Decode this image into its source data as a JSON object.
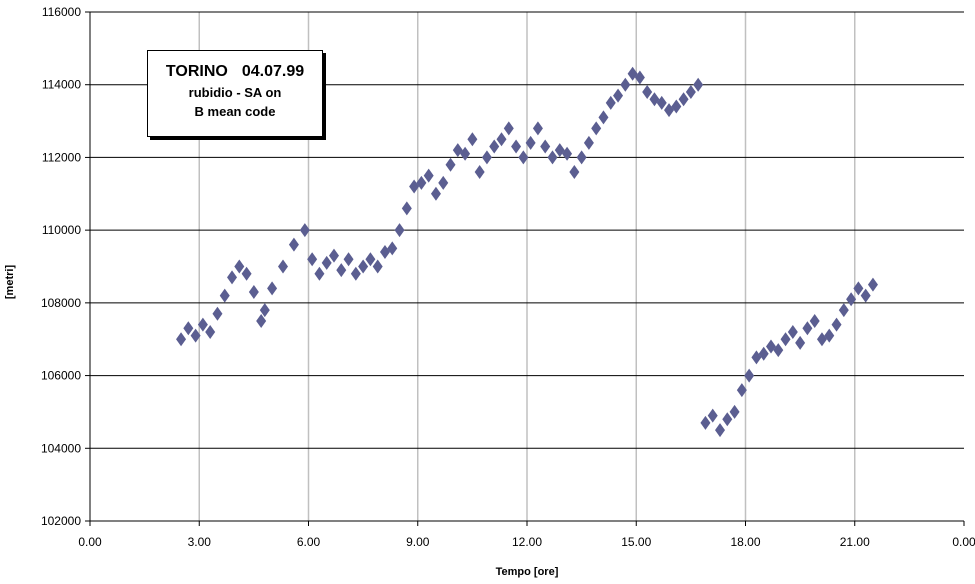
{
  "chart_data": {
    "type": "scatter",
    "title": "",
    "xlabel": "Tempo [ore]",
    "ylabel": "[metri]",
    "xlim": [
      0,
      24
    ],
    "ylim": [
      102000,
      116000
    ],
    "x_tick_labels": [
      "0.00",
      "3.00",
      "6.00",
      "9.00",
      "12.00",
      "15.00",
      "18.00",
      "21.00",
      "0.00"
    ],
    "y_tick_labels": [
      "102000",
      "104000",
      "106000",
      "108000",
      "110000",
      "112000",
      "114000",
      "116000"
    ],
    "grid": true,
    "marker_color": "#5B5E91",
    "annotation": {
      "location": "TORINO",
      "date": "04.07.99",
      "line2": "rubidio  -  SA on",
      "line3": "B mean code"
    },
    "series": [
      {
        "x": [
          2.5,
          2.7,
          2.9,
          3.1,
          3.3,
          3.5,
          3.7,
          3.9,
          4.1,
          4.3,
          4.5,
          4.7,
          4.8,
          5.0,
          5.3,
          5.6,
          5.9,
          6.1,
          6.3,
          6.5,
          6.7,
          6.9,
          7.1,
          7.3,
          7.5,
          7.7,
          7.9,
          8.1,
          8.3,
          8.5,
          8.7,
          8.9,
          9.1,
          9.3,
          9.5,
          9.7,
          9.9,
          10.1,
          10.3,
          10.5,
          10.7,
          10.9,
          11.1,
          11.3,
          11.5,
          11.7,
          11.9,
          12.1,
          12.3,
          12.5,
          12.7,
          12.9,
          13.1,
          13.3,
          13.5,
          13.7,
          13.9,
          14.1,
          14.3,
          14.5,
          14.7,
          14.9,
          15.1,
          15.3,
          15.5,
          15.7,
          15.9,
          16.1,
          16.3,
          16.5,
          16.7,
          16.9,
          17.1,
          17.3,
          17.5,
          17.7,
          17.9,
          18.1,
          18.3,
          18.5,
          18.7,
          18.9,
          19.1,
          19.3,
          19.5,
          19.7,
          19.9,
          20.1,
          20.3,
          20.5,
          20.7,
          20.9,
          21.1,
          21.3,
          21.5
        ],
        "y": [
          107000,
          107300,
          107100,
          107400,
          107200,
          107700,
          108200,
          108700,
          109000,
          108800,
          108300,
          107500,
          107800,
          108400,
          109000,
          109600,
          110000,
          109200,
          108800,
          109100,
          109300,
          108900,
          109200,
          108800,
          109000,
          109200,
          109000,
          109400,
          109500,
          110000,
          110600,
          111200,
          111300,
          111500,
          111000,
          111300,
          111800,
          112200,
          112100,
          112500,
          111600,
          112000,
          112300,
          112500,
          112800,
          112300,
          112000,
          112400,
          112800,
          112300,
          112000,
          112200,
          112100,
          111600,
          112000,
          112400,
          112800,
          113100,
          113500,
          113700,
          114000,
          114300,
          114200,
          113800,
          113600,
          113500,
          113300,
          113400,
          113600,
          113800,
          114000,
          104700,
          104900,
          104500,
          104800,
          105000,
          105600,
          106000,
          106500,
          106600,
          106800,
          106700,
          107000,
          107200,
          106900,
          107300,
          107500,
          107000,
          107100,
          107400,
          107800,
          108100,
          108400,
          108200,
          108500
        ]
      }
    ]
  }
}
